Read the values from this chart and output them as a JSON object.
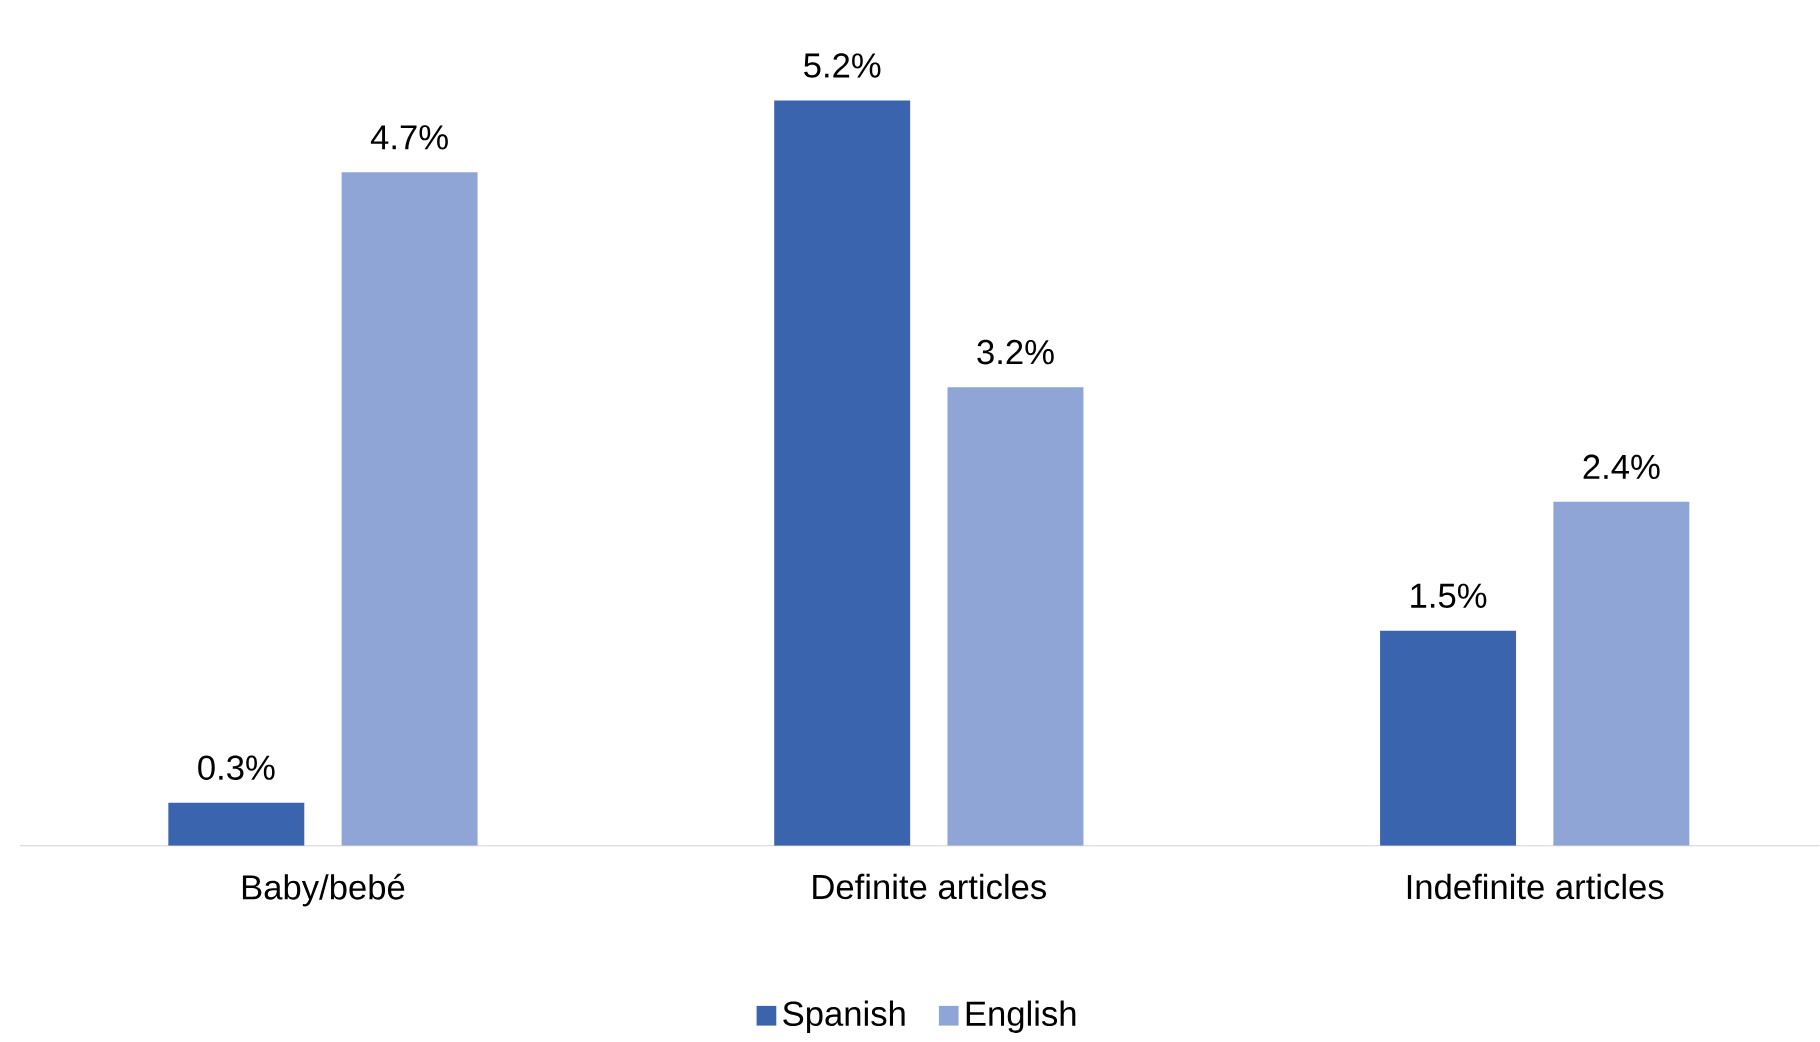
{
  "chart_data": {
    "type": "bar",
    "categories": [
      "Baby/bebé",
      "Definite articles",
      "Indefinite articles"
    ],
    "series": [
      {
        "name": "Spanish",
        "color": "#3a64ad",
        "values": [
          0.3,
          5.2,
          1.5
        ],
        "value_labels": [
          "0.3%",
          "5.2%",
          "1.5%"
        ]
      },
      {
        "name": "English",
        "color": "#8fa5d6",
        "values": [
          4.7,
          3.2,
          2.4
        ],
        "value_labels": [
          "4.7%",
          "3.2%",
          "2.4%"
        ]
      }
    ],
    "legend": "bottom"
  }
}
